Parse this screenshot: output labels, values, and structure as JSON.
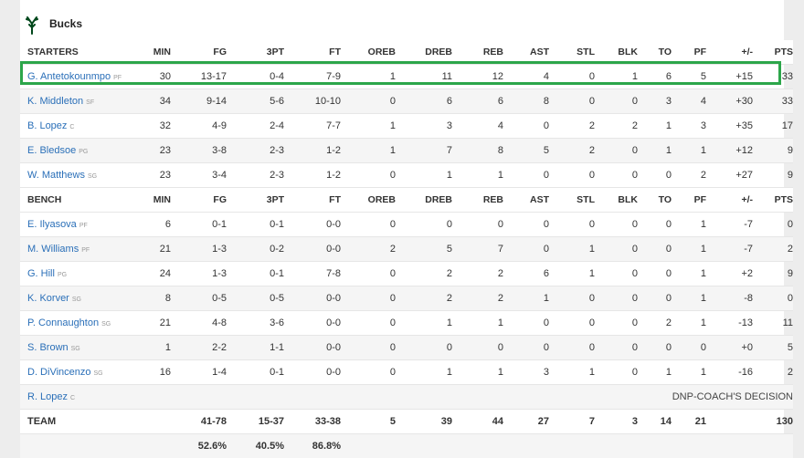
{
  "team": {
    "name": "Bucks",
    "logo_icon": "bucks-deer-antler-icon",
    "accent": "#00471b"
  },
  "highlight_color": "#2ca64a",
  "columns": [
    "MIN",
    "FG",
    "3PT",
    "FT",
    "OREB",
    "DREB",
    "REB",
    "AST",
    "STL",
    "BLK",
    "TO",
    "PF",
    "+/-",
    "PTS"
  ],
  "starters_label": "STARTERS",
  "bench_label": "BENCH",
  "starters": [
    {
      "name": "G. Antetokounmpo",
      "pos": "PF",
      "stats": [
        "30",
        "13-17",
        "0-4",
        "7-9",
        "1",
        "11",
        "12",
        "4",
        "0",
        "1",
        "6",
        "5",
        "+15",
        "33"
      ]
    },
    {
      "name": "K. Middleton",
      "pos": "SF",
      "stats": [
        "34",
        "9-14",
        "5-6",
        "10-10",
        "0",
        "6",
        "6",
        "8",
        "0",
        "0",
        "3",
        "4",
        "+30",
        "33"
      ]
    },
    {
      "name": "B. Lopez",
      "pos": "C",
      "stats": [
        "32",
        "4-9",
        "2-4",
        "7-7",
        "1",
        "3",
        "4",
        "0",
        "2",
        "2",
        "1",
        "3",
        "+35",
        "17"
      ]
    },
    {
      "name": "E. Bledsoe",
      "pos": "PG",
      "stats": [
        "23",
        "3-8",
        "2-3",
        "1-2",
        "1",
        "7",
        "8",
        "5",
        "2",
        "0",
        "1",
        "1",
        "+12",
        "9"
      ]
    },
    {
      "name": "W. Matthews",
      "pos": "SG",
      "stats": [
        "23",
        "3-4",
        "2-3",
        "1-2",
        "0",
        "1",
        "1",
        "0",
        "0",
        "0",
        "0",
        "2",
        "+27",
        "9"
      ]
    }
  ],
  "bench": [
    {
      "name": "E. Ilyasova",
      "pos": "PF",
      "stats": [
        "6",
        "0-1",
        "0-1",
        "0-0",
        "0",
        "0",
        "0",
        "0",
        "0",
        "0",
        "0",
        "1",
        "-7",
        "0"
      ]
    },
    {
      "name": "M. Williams",
      "pos": "PF",
      "stats": [
        "21",
        "1-3",
        "0-2",
        "0-0",
        "2",
        "5",
        "7",
        "0",
        "1",
        "0",
        "0",
        "1",
        "-7",
        "2"
      ]
    },
    {
      "name": "G. Hill",
      "pos": "PG",
      "stats": [
        "24",
        "1-3",
        "0-1",
        "7-8",
        "0",
        "2",
        "2",
        "6",
        "1",
        "0",
        "0",
        "1",
        "+2",
        "9"
      ]
    },
    {
      "name": "K. Korver",
      "pos": "SG",
      "stats": [
        "8",
        "0-5",
        "0-5",
        "0-0",
        "0",
        "2",
        "2",
        "1",
        "0",
        "0",
        "0",
        "1",
        "-8",
        "0"
      ]
    },
    {
      "name": "P. Connaughton",
      "pos": "SG",
      "stats": [
        "21",
        "4-8",
        "3-6",
        "0-0",
        "0",
        "1",
        "1",
        "0",
        "0",
        "0",
        "2",
        "1",
        "-13",
        "11"
      ]
    },
    {
      "name": "S. Brown",
      "pos": "SG",
      "stats": [
        "1",
        "2-2",
        "1-1",
        "0-0",
        "0",
        "0",
        "0",
        "0",
        "0",
        "0",
        "0",
        "0",
        "+0",
        "5"
      ]
    },
    {
      "name": "D. DiVincenzo",
      "pos": "SG",
      "stats": [
        "16",
        "1-4",
        "0-1",
        "0-0",
        "0",
        "1",
        "1",
        "3",
        "1",
        "0",
        "1",
        "1",
        "-16",
        "2"
      ]
    }
  ],
  "dnp": {
    "name": "R. Lopez",
    "pos": "C",
    "reason": "DNP-COACH'S DECISION"
  },
  "totals": {
    "label": "TEAM",
    "stats": [
      "",
      "41-78",
      "15-37",
      "33-38",
      "5",
      "39",
      "44",
      "27",
      "7",
      "3",
      "14",
      "21",
      "",
      "130"
    ]
  },
  "percentages": [
    "",
    "52.6%",
    "40.5%",
    "86.8%",
    "",
    "",
    "",
    "",
    "",
    "",
    "",
    "",
    "",
    ""
  ]
}
